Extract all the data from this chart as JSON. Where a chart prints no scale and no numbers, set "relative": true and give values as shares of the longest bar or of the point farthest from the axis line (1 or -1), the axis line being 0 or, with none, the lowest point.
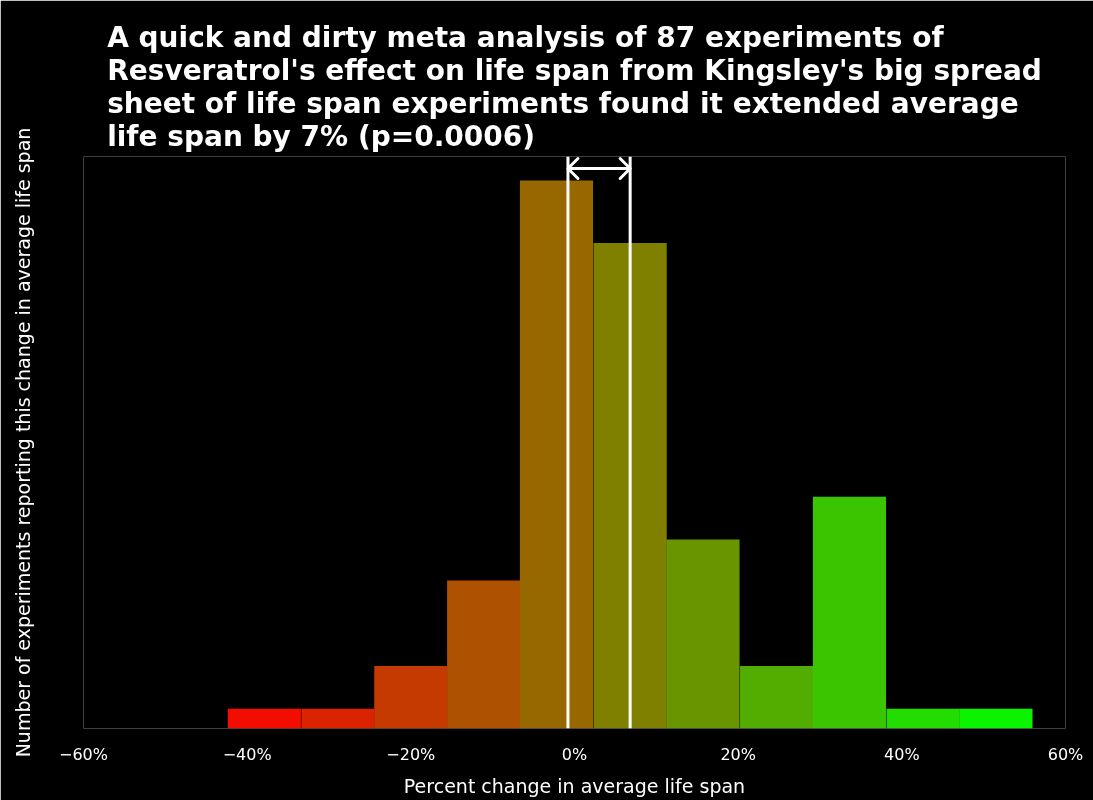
{
  "chart_data": {
    "type": "bar",
    "title": "A quick and dirty meta analysis of 87 experiments of Resveratrol's effect on life span from Kingsley's big spread sheet of life span experiments found it extended average life span by 7% (p=0.0006)",
    "xlabel": "Percent change in average life span",
    "ylabel": "Number of experiments reporting this change in average life span",
    "x": [
      -37.9,
      -28.9,
      -20.0,
      -11.1,
      -2.2,
      6.8,
      15.7,
      24.7,
      33.6,
      42.6,
      51.5
    ],
    "values": [
      0.036,
      0.036,
      0.114,
      0.27,
      1,
      0.886,
      0.345,
      0.114,
      0.423,
      0.036,
      0.036
    ],
    "colors": [
      "#f30c00",
      "#dc2300",
      "#c53a00",
      "#ae5100",
      "#976800",
      "#808000",
      "#699600",
      "#51ae00",
      "#3ac500",
      "#23dc00",
      "#0cf300"
    ],
    "relative": true,
    "xlim": [
      -60,
      60
    ],
    "xticks": [
      {
        "value": -60,
        "label": "−60%"
      },
      {
        "value": -40,
        "label": "−40%"
      },
      {
        "value": -20,
        "label": "−20%"
      },
      {
        "value": 0,
        "label": "0%"
      },
      {
        "value": 20,
        "label": "20%"
      },
      {
        "value": 40,
        "label": "40%"
      },
      {
        "value": 60,
        "label": "60%"
      }
    ],
    "ref_lines": [
      {
        "axis": "x",
        "value": -0.8,
        "color": "#ffffff"
      },
      {
        "axis": "x",
        "value": 6.8,
        "color": "#ffffff"
      }
    ]
  }
}
